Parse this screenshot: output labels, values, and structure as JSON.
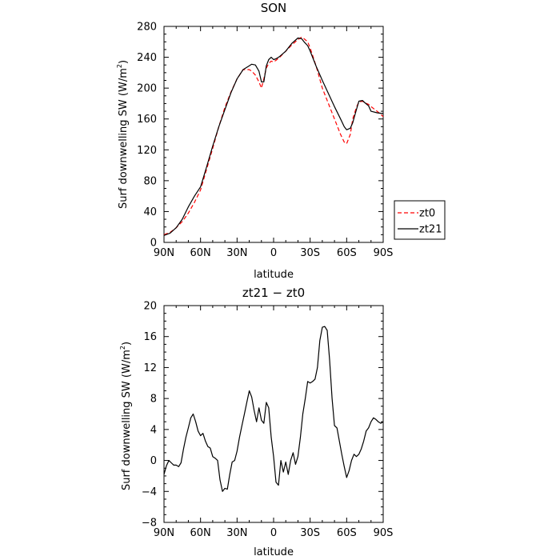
{
  "chart_data": [
    {
      "type": "line",
      "title": "SON",
      "xlabel": "latitude",
      "ylabel": "Surf downwelling SW (W/m",
      "ylabel_sup": "2",
      "ylabel_close": ")",
      "xlim": [
        90,
        -90
      ],
      "ylim": [
        0,
        280
      ],
      "x_ticks": [
        90,
        60,
        30,
        0,
        -30,
        -60,
        -90
      ],
      "x_tick_labels": [
        "90N",
        "60N",
        "30N",
        "0",
        "30S",
        "60S",
        "90S"
      ],
      "y_ticks": [
        0,
        40,
        80,
        120,
        160,
        200,
        240,
        280
      ],
      "y_tick_labels": [
        "0",
        "40",
        "80",
        "120",
        "160",
        "200",
        "240",
        "280"
      ],
      "legend_position": "right, outside plot",
      "series": [
        {
          "name": "zt0",
          "color": "#ff0000",
          "dash": "dashed",
          "x": [
            90,
            85,
            80,
            75,
            70,
            65,
            60,
            55,
            50,
            45,
            40,
            35,
            30,
            25,
            20,
            18,
            15,
            12,
            10,
            8,
            6,
            4,
            2,
            0,
            -2,
            -5,
            -10,
            -15,
            -20,
            -23,
            -25,
            -28,
            -30,
            -35,
            -40,
            -45,
            -50,
            -55,
            -58,
            -60,
            -63,
            -65,
            -68,
            -70,
            -73,
            -75,
            -78,
            -80,
            -85,
            -90
          ],
          "y": [
            10,
            13,
            19,
            27,
            38,
            52,
            68,
            95,
            122,
            150,
            175,
            195,
            212,
            224,
            224,
            222,
            217,
            208,
            200,
            212,
            226,
            232,
            235,
            234,
            236,
            240,
            248,
            256,
            263,
            266,
            264,
            260,
            252,
            228,
            200,
            180,
            160,
            140,
            130,
            128,
            140,
            160,
            175,
            182,
            183,
            181,
            179,
            176,
            170,
            163
          ]
        },
        {
          "name": "zt21",
          "color": "#000000",
          "dash": "solid",
          "x": [
            90,
            85,
            80,
            75,
            70,
            65,
            60,
            55,
            50,
            45,
            40,
            35,
            30,
            25,
            20,
            18,
            15,
            12,
            10,
            8,
            6,
            4,
            2,
            0,
            -2,
            -5,
            -10,
            -15,
            -20,
            -23,
            -25,
            -28,
            -30,
            -35,
            -40,
            -45,
            -50,
            -55,
            -58,
            -60,
            -63,
            -65,
            -68,
            -70,
            -73,
            -75,
            -78,
            -80,
            -85,
            -90
          ],
          "y": [
            9,
            12,
            19,
            30,
            46,
            60,
            72,
            98,
            125,
            150,
            172,
            194,
            212,
            224,
            229,
            231,
            230,
            222,
            208,
            208,
            229,
            237,
            240,
            237,
            238,
            241,
            248,
            258,
            265,
            264,
            260,
            255,
            248,
            228,
            210,
            193,
            176,
            160,
            150,
            146,
            148,
            155,
            172,
            183,
            184,
            181,
            177,
            170,
            168,
            167
          ]
        }
      ]
    },
    {
      "type": "line",
      "title": "zt21 − zt0",
      "xlabel": "latitude",
      "ylabel": "Surf downwelling SW (W/m",
      "ylabel_sup": "2",
      "ylabel_close": ")",
      "xlim": [
        90,
        -90
      ],
      "ylim": [
        -8,
        20
      ],
      "x_ticks": [
        90,
        60,
        30,
        0,
        -30,
        -60,
        -90
      ],
      "x_tick_labels": [
        "90N",
        "60N",
        "30N",
        "0",
        "30S",
        "60S",
        "90S"
      ],
      "y_ticks": [
        -8,
        -4,
        0,
        4,
        8,
        12,
        16,
        20
      ],
      "y_tick_labels": [
        "−8",
        "−4",
        "0",
        "4",
        "8",
        "12",
        "16",
        "20"
      ],
      "series": [
        {
          "color": "#000000",
          "dash": "solid",
          "x": [
            90,
            88,
            86,
            84,
            82,
            80,
            78,
            76,
            74,
            72,
            70,
            68,
            66,
            64,
            62,
            60,
            58,
            56,
            54,
            52,
            50,
            48,
            46,
            44,
            42,
            40,
            38,
            36,
            34,
            32,
            30,
            28,
            26,
            24,
            22,
            20,
            18,
            16,
            14,
            12,
            10,
            8,
            6,
            4,
            2,
            0,
            -2,
            -4,
            -6,
            -8,
            -10,
            -12,
            -14,
            -16,
            -18,
            -20,
            -22,
            -24,
            -26,
            -28,
            -30,
            -32,
            -34,
            -36,
            -38,
            -40,
            -42,
            -44,
            -46,
            -48,
            -50,
            -52,
            -54,
            -56,
            -58,
            -60,
            -62,
            -64,
            -66,
            -68,
            -70,
            -72,
            -74,
            -76,
            -78,
            -80,
            -82,
            -84,
            -86,
            -88,
            -90
          ],
          "y": [
            -1.8,
            -0.7,
            0,
            -0.3,
            -0.6,
            -0.6,
            -0.8,
            -0.3,
            1.5,
            3,
            4.2,
            5.5,
            6,
            5,
            3.8,
            3.2,
            3.5,
            2.5,
            1.8,
            1.6,
            0.5,
            0.3,
            0,
            -2.5,
            -4,
            -3.6,
            -3.7,
            -1.8,
            -0.2,
            0,
            1.2,
            3,
            4.5,
            6,
            7.5,
            9,
            8.2,
            6.5,
            5,
            6.8,
            5.2,
            4.8,
            7.5,
            6.8,
            3,
            0.5,
            -2.8,
            -3.2,
            0,
            -1.5,
            -0.2,
            -1.8,
            0,
            1,
            -0.5,
            0.5,
            3,
            6,
            8,
            10.2,
            10,
            10.2,
            10.5,
            12,
            15.5,
            17.2,
            17.3,
            16.8,
            13,
            8,
            4.5,
            4.2,
            2.5,
            0.8,
            -0.8,
            -2.2,
            -1.3,
            0,
            0.8,
            0.5,
            0.8,
            1.5,
            2.5,
            3.8,
            4.2,
            5,
            5.5,
            5.3,
            5,
            4.8,
            5
          ]
        }
      ]
    }
  ]
}
